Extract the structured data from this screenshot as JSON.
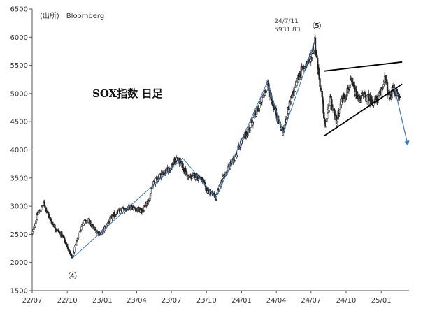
{
  "chart_data": {
    "type": "line",
    "title": "SOX指数 日足",
    "source": "(出所)　Bloomberg",
    "xlabel": "",
    "ylabel": "",
    "x_tick_labels": [
      "22/07",
      "22/10",
      "23/01",
      "23/04",
      "23/07",
      "23/10",
      "24/01",
      "24/04",
      "24/07",
      "24/10",
      "25/01"
    ],
    "x_tick_dates": [
      "2022-07-01",
      "2022-10-01",
      "2023-01-01",
      "2023-04-01",
      "2023-07-01",
      "2023-10-01",
      "2024-01-01",
      "2024-04-01",
      "2024-07-01",
      "2024-10-01",
      "2025-01-01"
    ],
    "xlim": [
      "2022-07-01",
      "2025-03-15"
    ],
    "ylim": [
      1500,
      6500
    ],
    "y_ticks": [
      1500,
      2000,
      2500,
      3000,
      3500,
      4000,
      4500,
      5000,
      5500,
      6000,
      6500
    ],
    "grid": false,
    "series": [
      {
        "style": "candlestick",
        "color": "#222222",
        "x": [
          "2022-07-01",
          "2022-07-15",
          "2022-08-01",
          "2022-08-15",
          "2022-09-01",
          "2022-09-15",
          "2022-10-01",
          "2022-10-13",
          "2022-10-25",
          "2022-11-10",
          "2022-11-25",
          "2022-12-10",
          "2022-12-28",
          "2023-01-15",
          "2023-02-01",
          "2023-02-15",
          "2023-03-01",
          "2023-03-15",
          "2023-04-01",
          "2023-04-15",
          "2023-05-01",
          "2023-05-15",
          "2023-06-01",
          "2023-06-15",
          "2023-07-01",
          "2023-07-15",
          "2023-07-31",
          "2023-08-15",
          "2023-09-01",
          "2023-09-15",
          "2023-10-01",
          "2023-10-26",
          "2023-11-10",
          "2023-11-25",
          "2023-12-10",
          "2023-12-28",
          "2024-01-15",
          "2024-02-01",
          "2024-02-15",
          "2024-03-01",
          "2024-03-08",
          "2024-03-20",
          "2024-04-05",
          "2024-04-19",
          "2024-05-01",
          "2024-05-15",
          "2024-06-01",
          "2024-06-15",
          "2024-07-01",
          "2024-07-11",
          "2024-07-20",
          "2024-08-01",
          "2024-08-07",
          "2024-08-20",
          "2024-09-01",
          "2024-09-06",
          "2024-09-20",
          "2024-10-01",
          "2024-10-15",
          "2024-11-01",
          "2024-11-15",
          "2024-12-01",
          "2024-12-15",
          "2025-01-01",
          "2025-01-10",
          "2025-01-24",
          "2025-02-01",
          "2025-02-10",
          "2025-02-20"
        ],
        "values": [
          2500,
          2850,
          3050,
          2800,
          2600,
          2500,
          2300,
          2070,
          2350,
          2700,
          2750,
          2600,
          2500,
          2700,
          2850,
          2900,
          2950,
          3000,
          2950,
          2900,
          3100,
          3400,
          3550,
          3600,
          3700,
          3850,
          3700,
          3500,
          3550,
          3500,
          3300,
          3150,
          3450,
          3650,
          3800,
          4100,
          4300,
          4550,
          4750,
          5000,
          5200,
          4900,
          4550,
          4300,
          4700,
          5000,
          5350,
          5500,
          5650,
          5932,
          5400,
          4800,
          4400,
          4900,
          4600,
          4500,
          4900,
          5000,
          5200,
          4900,
          4950,
          4900,
          4850,
          5000,
          5300,
          4900,
          5100,
          5000,
          4900
        ]
      },
      {
        "name": "",
        "style": "line",
        "color": "#3a78c0",
        "x": [
          "2022-10-13",
          "2023-07-31",
          "2023-10-26",
          "2024-03-08",
          "2024-04-19",
          "2024-07-11"
        ],
        "values": [
          2070,
          3850,
          3150,
          5200,
          4300,
          5932
        ]
      },
      {
        "name": "",
        "style": "line",
        "color": "#000000",
        "x": [
          "2024-08-05",
          "2025-02-25"
        ],
        "values": [
          5400,
          5560
        ]
      },
      {
        "name": "",
        "style": "line",
        "color": "#000000",
        "x": [
          "2024-08-05",
          "2025-02-25"
        ],
        "values": [
          4250,
          5170
        ]
      },
      {
        "name": "",
        "style": "arrow",
        "color": "#3a78c0",
        "x": [
          "2025-02-05",
          "2025-03-12"
        ],
        "values": [
          5100,
          4080
        ]
      }
    ],
    "annotations": [
      {
        "text": "24/7/11",
        "x": "2024-07-11",
        "y": 5931.83
      },
      {
        "text": "5931.83",
        "x": "2024-07-11",
        "y": 5931.83
      },
      {
        "text": "⑤",
        "x": "2024-07-11",
        "y": 5931.83
      },
      {
        "text": "④",
        "x": "2022-10-13",
        "y": 2070
      }
    ]
  }
}
